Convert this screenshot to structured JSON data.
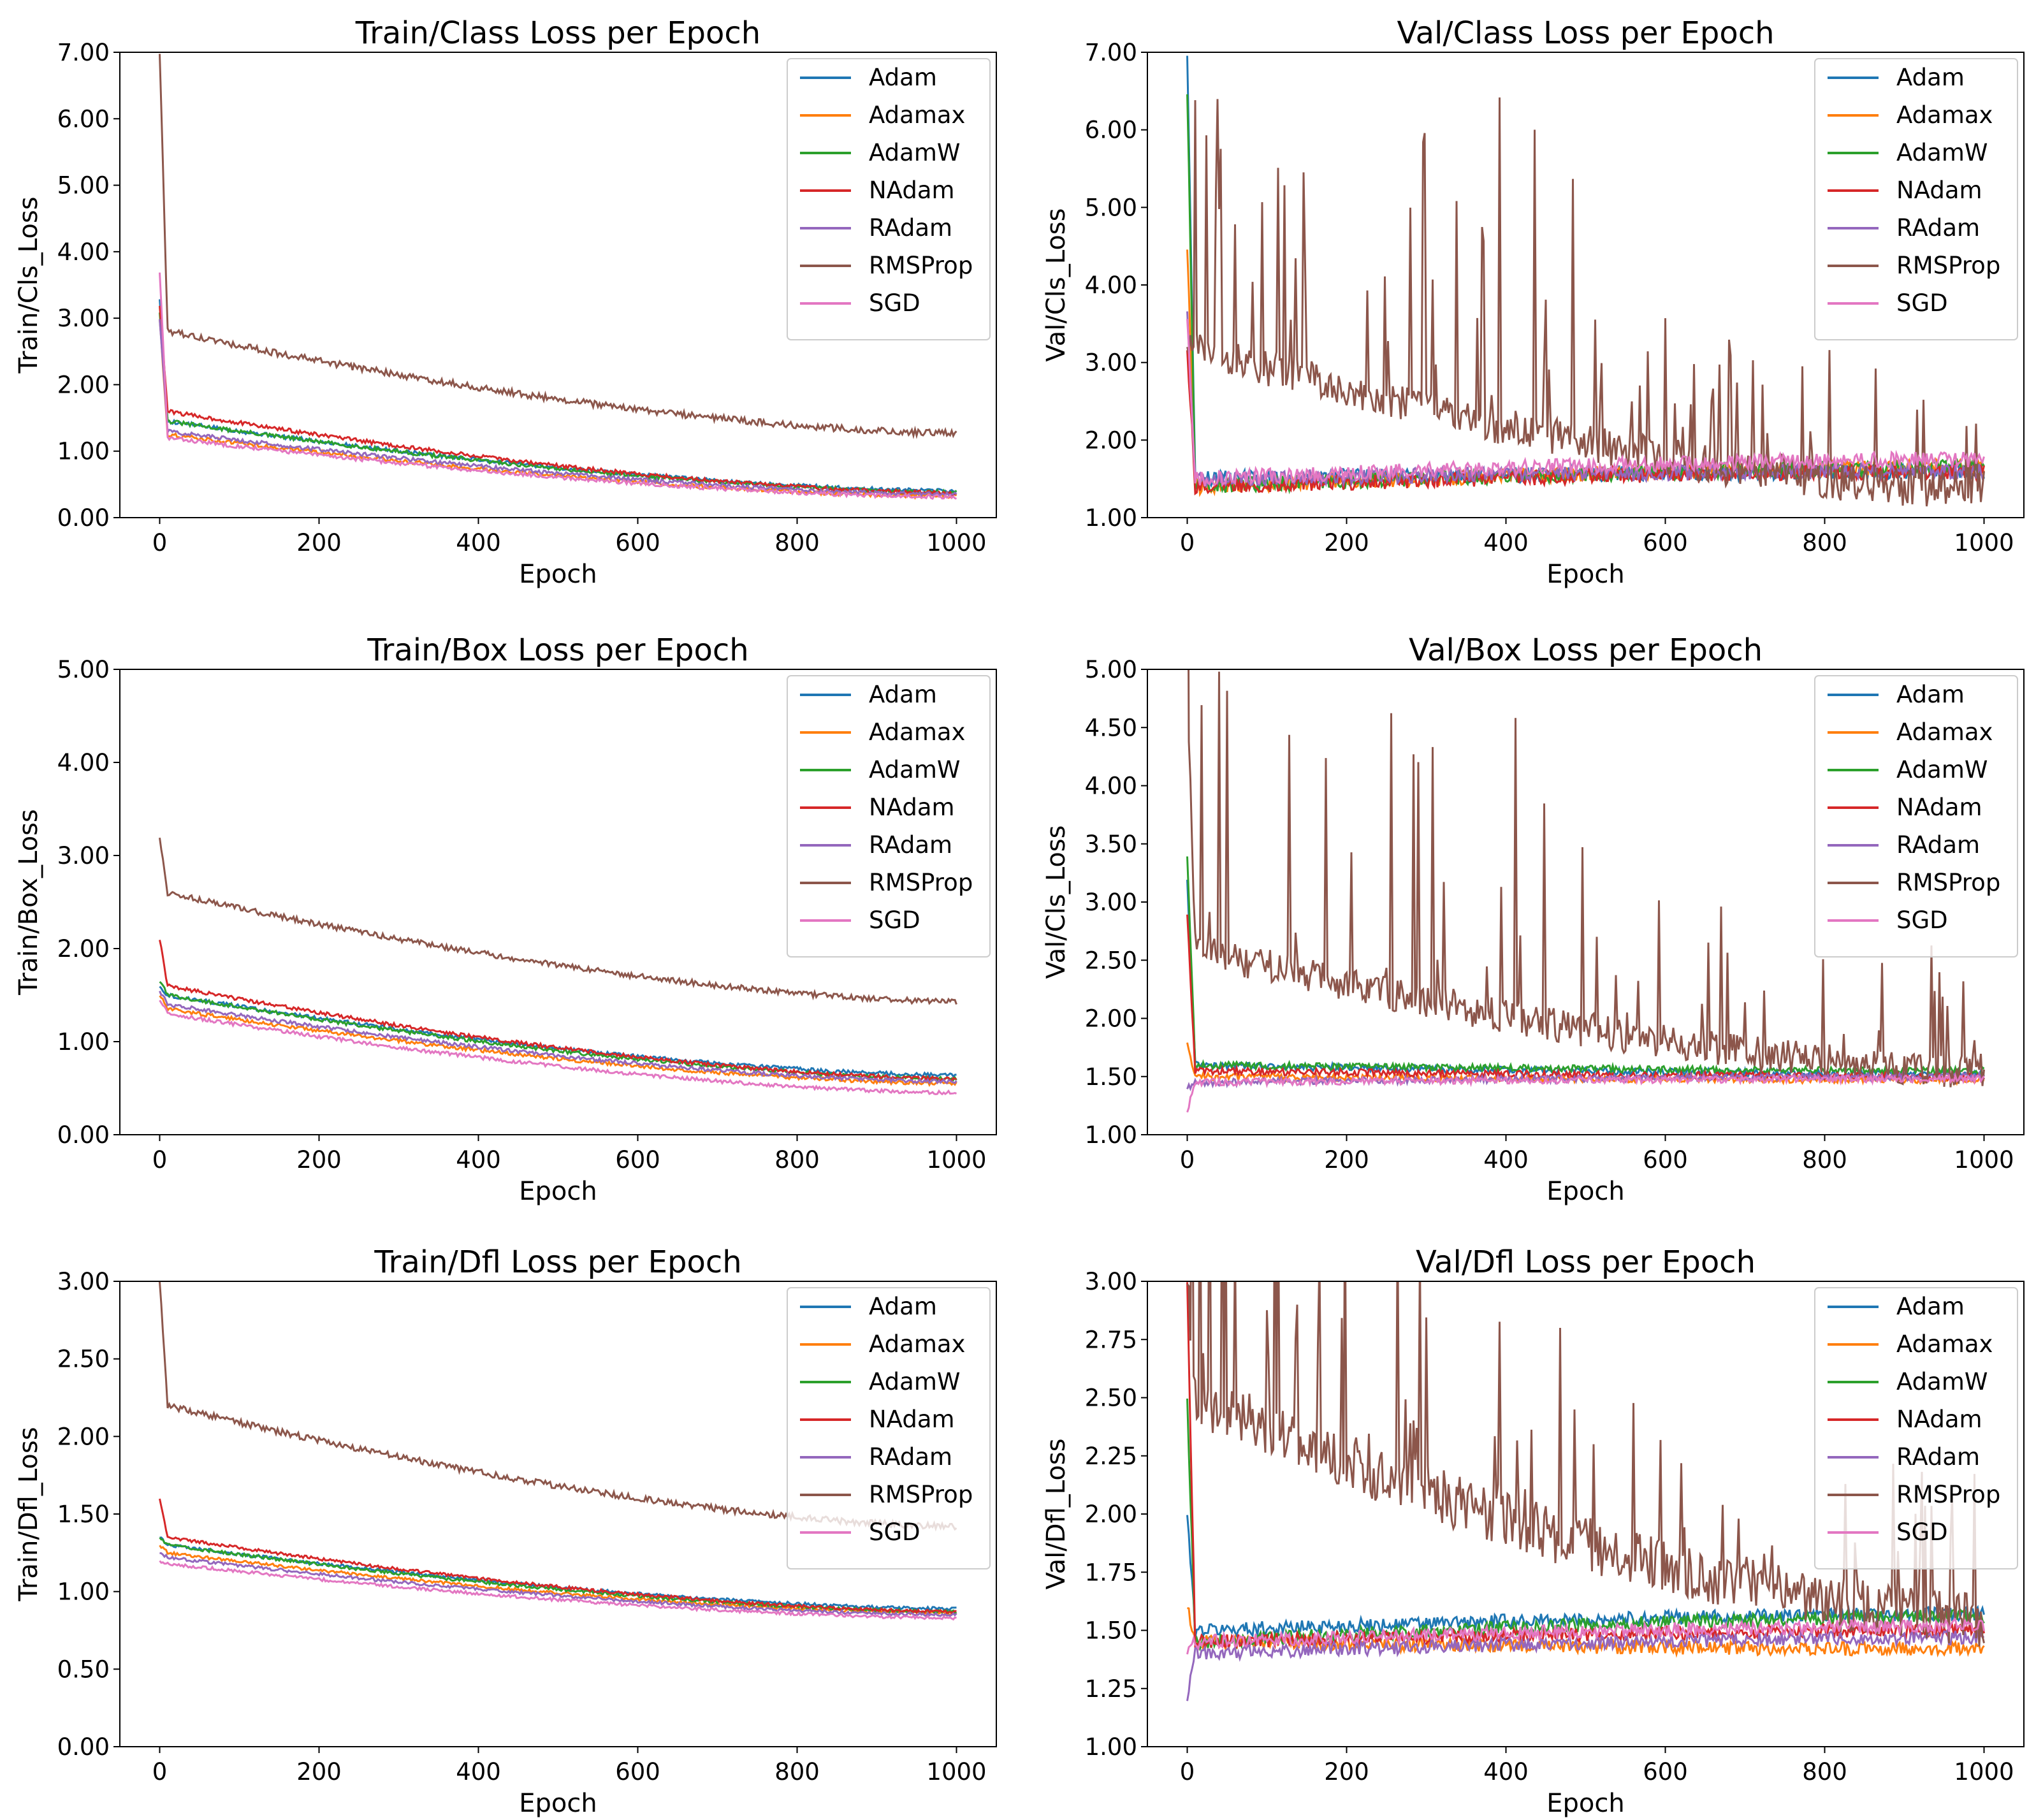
{
  "legend_labels": [
    "Adam",
    "Adamax",
    "AdamW",
    "NAdam",
    "RAdam",
    "RMSProp",
    "SGD"
  ],
  "series_colors": {
    "Adam": "#1f77b4",
    "Adamax": "#ff7f0e",
    "AdamW": "#2ca02c",
    "NAdam": "#d62728",
    "RAdam": "#9467bd",
    "RMSProp": "#8c564b",
    "SGD": "#e377c2"
  },
  "chart_data": [
    {
      "type": "line",
      "title": "Train/Class Loss per Epoch",
      "xlabel": "Epoch",
      "ylabel": "Train/Cls_Loss",
      "xlim": [
        -50,
        1050
      ],
      "ylim": [
        0,
        7
      ],
      "xticks": [
        "0",
        "200",
        "400",
        "600",
        "800",
        "1000"
      ],
      "yticks": [
        "0.00",
        "1.00",
        "2.00",
        "3.00",
        "4.00",
        "5.00",
        "6.00",
        "7.00"
      ],
      "legend_position": "upper right",
      "series": [
        {
          "name": "Adam",
          "start": 3.3,
          "knee": 1.45,
          "end": 0.4,
          "noise": 0.03
        },
        {
          "name": "Adamax",
          "start": 3.0,
          "knee": 1.25,
          "end": 0.32,
          "noise": 0.03
        },
        {
          "name": "AdamW",
          "start": 3.1,
          "knee": 1.45,
          "end": 0.38,
          "noise": 0.03
        },
        {
          "name": "NAdam",
          "start": 3.2,
          "knee": 1.6,
          "end": 0.37,
          "noise": 0.03
        },
        {
          "name": "RAdam",
          "start": 3.0,
          "knee": 1.3,
          "end": 0.35,
          "noise": 0.03
        },
        {
          "name": "RMSProp",
          "start": 7.0,
          "knee": 2.8,
          "end": 1.27,
          "noise": 0.05
        },
        {
          "name": "SGD",
          "start": 3.7,
          "knee": 1.2,
          "end": 0.31,
          "noise": 0.03
        }
      ]
    },
    {
      "type": "line",
      "title": "Val/Class Loss per Epoch",
      "xlabel": "Epoch",
      "ylabel": "Val/Cls_Loss",
      "xlim": [
        -50,
        1050
      ],
      "ylim": [
        1,
        7
      ],
      "xticks": [
        "0",
        "200",
        "400",
        "600",
        "800",
        "1000"
      ],
      "yticks": [
        "1.00",
        "2.00",
        "3.00",
        "4.00",
        "5.00",
        "6.00",
        "7.00"
      ],
      "legend_position": "upper right",
      "series": [
        {
          "name": "Adam",
          "start": 7.0,
          "knee": 1.5,
          "end": 1.6,
          "noise": 0.1
        },
        {
          "name": "Adamax",
          "start": 4.5,
          "knee": 1.4,
          "end": 1.65,
          "noise": 0.1
        },
        {
          "name": "AdamW",
          "start": 6.5,
          "knee": 1.4,
          "end": 1.65,
          "noise": 0.1
        },
        {
          "name": "NAdam",
          "start": 3.2,
          "knee": 1.4,
          "end": 1.6,
          "noise": 0.1
        },
        {
          "name": "RAdam",
          "start": 3.7,
          "knee": 1.5,
          "end": 1.6,
          "noise": 0.1
        },
        {
          "name": "RMSProp",
          "start": 3.3,
          "knee": 3.2,
          "end": 1.35,
          "noise": 0.25
        },
        {
          "name": "SGD",
          "start": 3.6,
          "knee": 1.5,
          "end": 1.75,
          "noise": 0.1
        }
      ]
    },
    {
      "type": "line",
      "title": "Train/Box Loss per Epoch",
      "xlabel": "Epoch",
      "ylabel": "Train/Box_Loss",
      "xlim": [
        -50,
        1050
      ],
      "ylim": [
        0,
        5
      ],
      "xticks": [
        "0",
        "200",
        "400",
        "600",
        "800",
        "1000"
      ],
      "yticks": [
        "0.00",
        "1.00",
        "2.00",
        "3.00",
        "4.00",
        "5.00"
      ],
      "legend_position": "upper right",
      "series": [
        {
          "name": "Adam",
          "start": 1.6,
          "knee": 1.5,
          "end": 0.64,
          "noise": 0.02
        },
        {
          "name": "Adamax",
          "start": 1.5,
          "knee": 1.35,
          "end": 0.55,
          "noise": 0.02
        },
        {
          "name": "AdamW",
          "start": 1.65,
          "knee": 1.5,
          "end": 0.6,
          "noise": 0.02
        },
        {
          "name": "NAdam",
          "start": 2.1,
          "knee": 1.6,
          "end": 0.6,
          "noise": 0.02
        },
        {
          "name": "RAdam",
          "start": 1.55,
          "knee": 1.4,
          "end": 0.57,
          "noise": 0.02
        },
        {
          "name": "RMSProp",
          "start": 3.2,
          "knee": 2.6,
          "end": 1.43,
          "noise": 0.03
        },
        {
          "name": "SGD",
          "start": 1.45,
          "knee": 1.3,
          "end": 0.45,
          "noise": 0.02
        }
      ]
    },
    {
      "type": "line",
      "title": "Val/Box Loss per Epoch",
      "xlabel": "Epoch",
      "ylabel": "Val/Cls_Loss",
      "xlim": [
        -50,
        1050
      ],
      "ylim": [
        1,
        5
      ],
      "xticks": [
        "0",
        "200",
        "400",
        "600",
        "800",
        "1000"
      ],
      "yticks": [
        "1.00",
        "1.50",
        "2.00",
        "2.50",
        "3.00",
        "3.50",
        "4.00",
        "4.50",
        "5.00"
      ],
      "legend_position": "upper right",
      "series": [
        {
          "name": "Adam",
          "start": 3.2,
          "knee": 1.6,
          "end": 1.52,
          "noise": 0.03
        },
        {
          "name": "Adamax",
          "start": 1.8,
          "knee": 1.5,
          "end": 1.47,
          "noise": 0.03
        },
        {
          "name": "AdamW",
          "start": 3.4,
          "knee": 1.6,
          "end": 1.55,
          "noise": 0.03
        },
        {
          "name": "NAdam",
          "start": 2.9,
          "knee": 1.55,
          "end": 1.5,
          "noise": 0.03
        },
        {
          "name": "RAdam",
          "start": 1.4,
          "knee": 1.45,
          "end": 1.5,
          "noise": 0.03
        },
        {
          "name": "RMSProp",
          "start": 5.0,
          "knee": 2.6,
          "end": 1.55,
          "noise": 0.15
        },
        {
          "name": "SGD",
          "start": 1.2,
          "knee": 1.45,
          "end": 1.48,
          "noise": 0.03
        }
      ]
    },
    {
      "type": "line",
      "title": "Train/Dfl Loss per Epoch",
      "xlabel": "Epoch",
      "ylabel": "Train/Dfl_Loss",
      "xlim": [
        -50,
        1050
      ],
      "ylim": [
        0,
        3
      ],
      "xticks": [
        "0",
        "200",
        "400",
        "600",
        "800",
        "1000"
      ],
      "yticks": [
        "0.00",
        "0.50",
        "1.00",
        "1.50",
        "2.00",
        "2.50",
        "3.00"
      ],
      "legend_position": "upper right",
      "series": [
        {
          "name": "Adam",
          "start": 1.35,
          "knee": 1.3,
          "end": 0.89,
          "noise": 0.01
        },
        {
          "name": "Adamax",
          "start": 1.3,
          "knee": 1.25,
          "end": 0.86,
          "noise": 0.01
        },
        {
          "name": "AdamW",
          "start": 1.35,
          "knee": 1.3,
          "end": 0.87,
          "noise": 0.01
        },
        {
          "name": "NAdam",
          "start": 1.6,
          "knee": 1.35,
          "end": 0.87,
          "noise": 0.01
        },
        {
          "name": "RAdam",
          "start": 1.25,
          "knee": 1.22,
          "end": 0.85,
          "noise": 0.01
        },
        {
          "name": "RMSProp",
          "start": 3.0,
          "knee": 2.2,
          "end": 1.42,
          "noise": 0.02
        },
        {
          "name": "SGD",
          "start": 1.2,
          "knee": 1.18,
          "end": 0.83,
          "noise": 0.01
        }
      ]
    },
    {
      "type": "line",
      "title": "Val/Dfl Loss per Epoch",
      "xlabel": "Epoch",
      "ylabel": "Val/Dfl_Loss",
      "xlim": [
        -50,
        1050
      ],
      "ylim": [
        1,
        3
      ],
      "xticks": [
        "0",
        "200",
        "400",
        "600",
        "800",
        "1000"
      ],
      "yticks": [
        "1.00",
        "1.25",
        "1.50",
        "1.75",
        "2.00",
        "2.25",
        "2.50",
        "2.75",
        "3.00"
      ],
      "legend_position": "upper right",
      "series": [
        {
          "name": "Adam",
          "start": 2.0,
          "knee": 1.5,
          "end": 1.57,
          "noise": 0.03
        },
        {
          "name": "Adamax",
          "start": 1.6,
          "knee": 1.45,
          "end": 1.42,
          "noise": 0.03
        },
        {
          "name": "AdamW",
          "start": 2.5,
          "knee": 1.45,
          "end": 1.56,
          "noise": 0.03
        },
        {
          "name": "NAdam",
          "start": 3.0,
          "knee": 1.45,
          "end": 1.5,
          "noise": 0.03
        },
        {
          "name": "RAdam",
          "start": 1.2,
          "knee": 1.4,
          "end": 1.47,
          "noise": 0.03
        },
        {
          "name": "RMSProp",
          "start": 3.0,
          "knee": 2.5,
          "end": 1.55,
          "noise": 0.12
        },
        {
          "name": "SGD",
          "start": 1.4,
          "knee": 1.45,
          "end": 1.52,
          "noise": 0.03
        }
      ]
    }
  ]
}
